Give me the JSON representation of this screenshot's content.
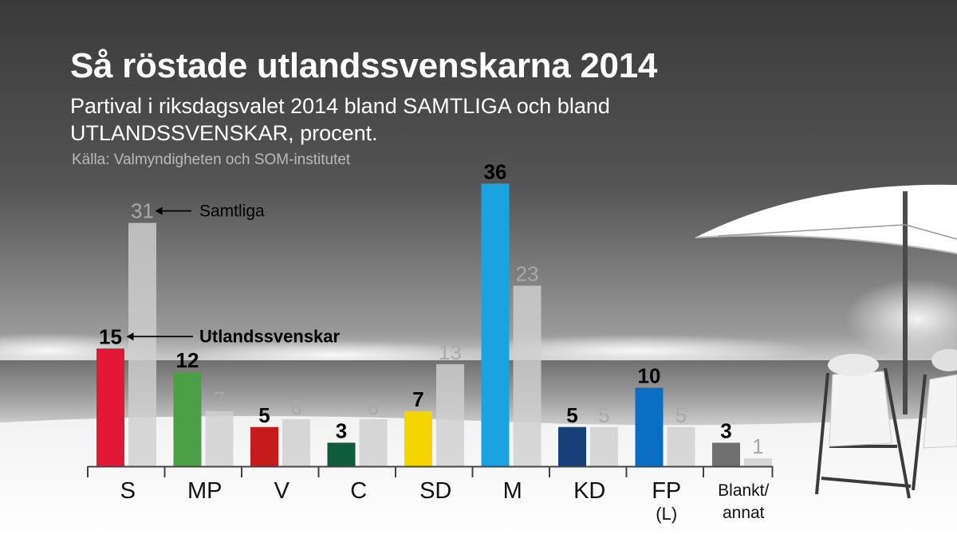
{
  "chart_data": {
    "type": "bar",
    "title": "Så röstade utlandssvenskarna 2014",
    "subtitle": "Partival i riksdagsvalet 2014 bland SAMTLIGA och bland UTLANDSSVENSKAR, procent.",
    "source": "Källa: Valmyndigheten och SOM-institutet",
    "categories": [
      {
        "label": "S",
        "sub": ""
      },
      {
        "label": "MP",
        "sub": ""
      },
      {
        "label": "V",
        "sub": ""
      },
      {
        "label": "C",
        "sub": ""
      },
      {
        "label": "SD",
        "sub": ""
      },
      {
        "label": "M",
        "sub": ""
      },
      {
        "label": "KD",
        "sub": ""
      },
      {
        "label": "FP",
        "sub": "(L)"
      },
      {
        "label": "Blankt/",
        "sub": "annat"
      }
    ],
    "series": [
      {
        "name": "Utlandssvenskar",
        "values": [
          15,
          12,
          5,
          3,
          7,
          36,
          5,
          10,
          3
        ],
        "colors": [
          "#e31837",
          "#4ba046",
          "#c61b1b",
          "#0e5c3c",
          "#f5d500",
          "#1aa3e0",
          "#17407b",
          "#0a6fc2",
          "#707070"
        ]
      },
      {
        "name": "Samtliga",
        "values": [
          31,
          7,
          6,
          6,
          13,
          23,
          5,
          5,
          1
        ],
        "color": "#cfcfcf"
      }
    ],
    "ylim": [
      0,
      36
    ],
    "grid": false,
    "legend": "inline-annotations"
  }
}
